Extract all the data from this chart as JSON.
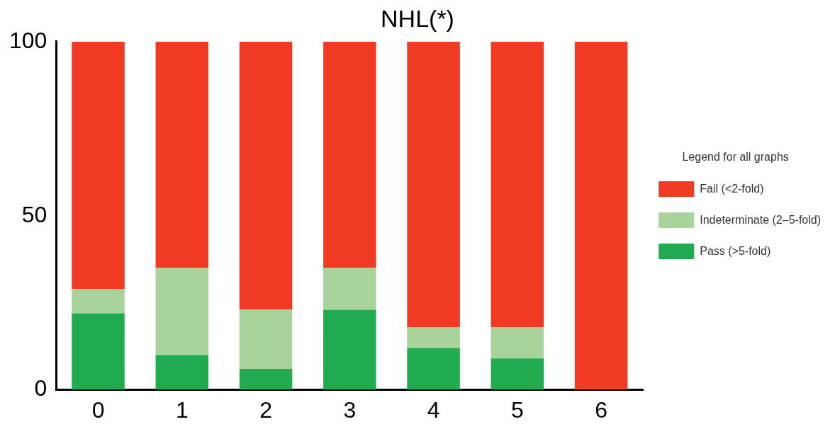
{
  "chart_data": {
    "type": "bar",
    "title": "NHL(*)",
    "categories": [
      "0",
      "1",
      "2",
      "3",
      "4",
      "5",
      "6"
    ],
    "stacked": true,
    "series": [
      {
        "name": "Pass (>5-fold)",
        "color": "#1fab4e",
        "values": [
          22,
          10,
          6,
          23,
          12,
          9,
          0
        ]
      },
      {
        "name": "Indeterminate (2–5-fold)",
        "color": "#a8d39a",
        "values": [
          7,
          25,
          17,
          12,
          6,
          9,
          0
        ]
      },
      {
        "name": "Fail (<2-fold)",
        "color": "#f03a24",
        "values": [
          71,
          65,
          77,
          65,
          82,
          82,
          100
        ]
      }
    ],
    "ylim": [
      0,
      100
    ],
    "yticks": [
      0,
      50,
      100
    ],
    "grid": false,
    "legend": "right",
    "legend_title": "Legend for all graphs"
  }
}
